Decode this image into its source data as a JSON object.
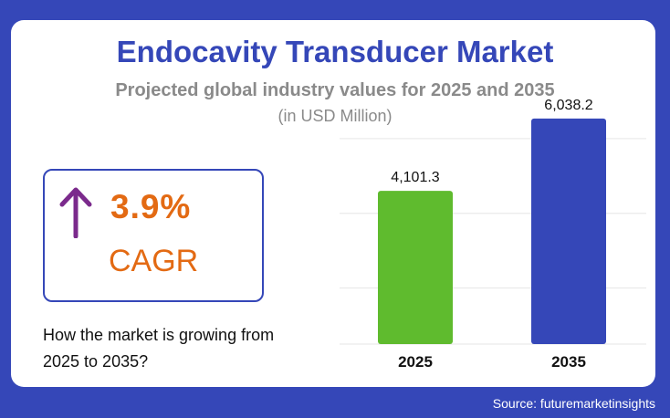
{
  "header": {
    "title": "Endocavity Transducer Market",
    "subtitle": "Projected global industry values for 2025 and 2035",
    "unit": "(in USD Million)"
  },
  "cagr": {
    "value": "3.9%",
    "label": "CAGR",
    "arrow_icon": "arrow-up-icon",
    "color": "#e36a13",
    "arrow_color": "#7b2a8c"
  },
  "question": "How the market is growing from 2025 to 2035?",
  "source": "Source: futuremarketinsights",
  "colors": {
    "background": "#3547b8",
    "bar_2025": "#5fbb2e",
    "bar_2035": "#3547b8"
  },
  "chart_data": {
    "type": "bar",
    "categories": [
      "2025",
      "2035"
    ],
    "values": [
      4101.3,
      6038.2
    ],
    "value_labels": [
      "4,101.3",
      "6,038.2"
    ],
    "bar_colors": [
      "#5fbb2e",
      "#3547b8"
    ],
    "title": "Endocavity Transducer Market",
    "ylim": [
      0,
      6500
    ],
    "grid": true,
    "legend": "none"
  }
}
